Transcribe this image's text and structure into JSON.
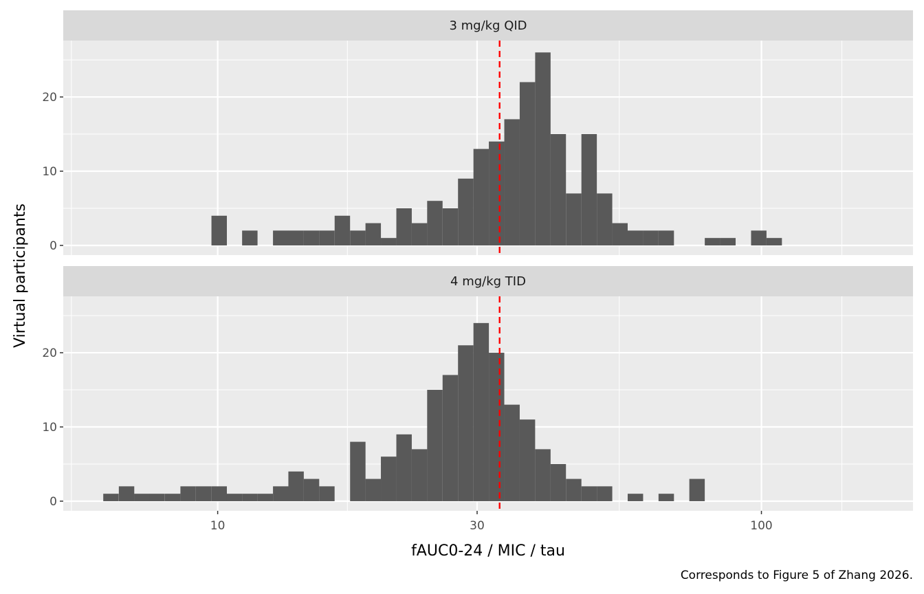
{
  "chart_data": {
    "type": "histogram",
    "facets": [
      {
        "label": "3 mg/kg QID",
        "bins": [
          {
            "left": 9.74,
            "count": 4
          },
          {
            "left": 11.09,
            "count": 2
          },
          {
            "left": 12.64,
            "count": 2
          },
          {
            "left": 13.49,
            "count": 2
          },
          {
            "left": 14.4,
            "count": 2
          },
          {
            "left": 15.37,
            "count": 2
          },
          {
            "left": 16.41,
            "count": 4
          },
          {
            "left": 17.52,
            "count": 2
          },
          {
            "left": 18.7,
            "count": 3
          },
          {
            "left": 19.96,
            "count": 1
          },
          {
            "left": 21.31,
            "count": 5
          },
          {
            "left": 22.75,
            "count": 3
          },
          {
            "left": 24.28,
            "count": 6
          },
          {
            "left": 25.92,
            "count": 5
          },
          {
            "left": 27.67,
            "count": 9
          },
          {
            "left": 29.54,
            "count": 13
          },
          {
            "left": 31.53,
            "count": 14
          },
          {
            "left": 33.66,
            "count": 17
          },
          {
            "left": 35.93,
            "count": 22
          },
          {
            "left": 38.36,
            "count": 26
          },
          {
            "left": 40.94,
            "count": 15
          },
          {
            "left": 43.71,
            "count": 7
          },
          {
            "left": 46.66,
            "count": 15
          },
          {
            "left": 49.81,
            "count": 7
          },
          {
            "left": 53.17,
            "count": 3
          },
          {
            "left": 56.76,
            "count": 2
          },
          {
            "left": 60.59,
            "count": 2
          },
          {
            "left": 64.68,
            "count": 2
          },
          {
            "left": 78.67,
            "count": 1
          },
          {
            "left": 83.98,
            "count": 1
          },
          {
            "left": 95.71,
            "count": 2
          },
          {
            "left": 102.17,
            "count": 1
          }
        ]
      },
      {
        "label": "4 mg/kg TID",
        "bins": [
          {
            "left": 6.16,
            "count": 1
          },
          {
            "left": 6.58,
            "count": 2
          },
          {
            "left": 7.02,
            "count": 1
          },
          {
            "left": 7.49,
            "count": 1
          },
          {
            "left": 8.0,
            "count": 1
          },
          {
            "left": 8.54,
            "count": 2
          },
          {
            "left": 9.12,
            "count": 2
          },
          {
            "left": 9.74,
            "count": 2
          },
          {
            "left": 10.39,
            "count": 1
          },
          {
            "left": 11.09,
            "count": 1
          },
          {
            "left": 11.84,
            "count": 1
          },
          {
            "left": 12.64,
            "count": 2
          },
          {
            "left": 13.49,
            "count": 4
          },
          {
            "left": 14.4,
            "count": 3
          },
          {
            "left": 15.37,
            "count": 2
          },
          {
            "left": 17.52,
            "count": 8
          },
          {
            "left": 18.7,
            "count": 3
          },
          {
            "left": 19.96,
            "count": 6
          },
          {
            "left": 21.31,
            "count": 9
          },
          {
            "left": 22.75,
            "count": 7
          },
          {
            "left": 24.28,
            "count": 15
          },
          {
            "left": 25.92,
            "count": 17
          },
          {
            "left": 27.67,
            "count": 21
          },
          {
            "left": 29.54,
            "count": 24
          },
          {
            "left": 31.53,
            "count": 20
          },
          {
            "left": 33.66,
            "count": 13
          },
          {
            "left": 35.93,
            "count": 11
          },
          {
            "left": 38.36,
            "count": 7
          },
          {
            "left": 40.94,
            "count": 5
          },
          {
            "left": 43.71,
            "count": 3
          },
          {
            "left": 46.66,
            "count": 2
          },
          {
            "left": 49.81,
            "count": 2
          },
          {
            "left": 56.76,
            "count": 1
          },
          {
            "left": 64.68,
            "count": 1
          },
          {
            "left": 73.69,
            "count": 3
          }
        ]
      }
    ],
    "bin_ratio": 1.0675,
    "reference_line": {
      "x": 33,
      "color": "#ff0000",
      "style": "dashed"
    },
    "xlabel": "fAUC0-24 / MIC / tau",
    "ylabel": "Virtual participants",
    "x_scale": "log10",
    "xlim": [
      5.2,
      190
    ],
    "x_ticks": [
      10,
      30,
      100
    ],
    "x_tick_labels": [
      "10",
      "30",
      "100"
    ],
    "ylim": [
      -1.3,
      27.6
    ],
    "y_ticks": [
      0,
      10,
      20
    ],
    "y_tick_labels": [
      "0",
      "10",
      "20"
    ],
    "caption": "Corresponds to Figure 5 of Zhang 2026.",
    "colors": {
      "bar": "#595959",
      "panel_bg": "#ebebeb",
      "strip_bg": "#d9d9d9",
      "grid": "#ffffff",
      "reference": "#ff0000"
    },
    "grid": true
  }
}
